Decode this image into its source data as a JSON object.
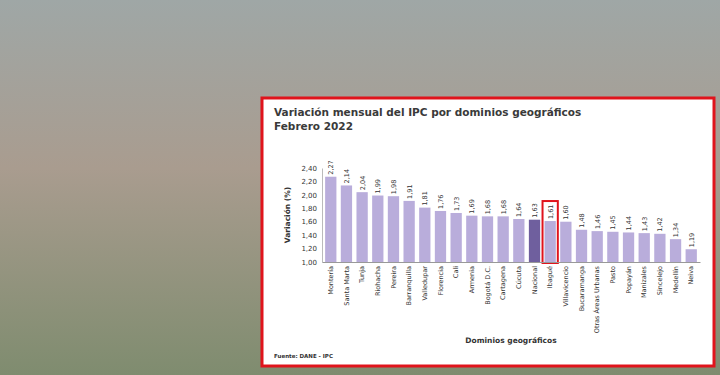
{
  "chart_data": {
    "type": "bar",
    "title": "Variación mensual del IPC por dominios geográficos",
    "subtitle": "Febrero 2022",
    "x_label": "Dominios geográficos",
    "y_label": "Variación (%)",
    "source": "Fuente: DANE - IPC",
    "categories": [
      "Montería",
      "Santa Marta",
      "Tunja",
      "Riohacha",
      "Pereira",
      "Barranquilla",
      "Valledupar",
      "Florencia",
      "Cali",
      "Armenia",
      "Bogotá D.C.",
      "Cartagena",
      "Cúcuta",
      "Nacional",
      "Ibagué",
      "Villavicencio",
      "Bucaramanga",
      "Otras Áreas Urbanas",
      "Pasto",
      "Popayán",
      "Manizales",
      "Sincelejo",
      "Medellín",
      "Neiva"
    ],
    "values": [
      2.27,
      2.14,
      2.04,
      1.99,
      1.98,
      1.91,
      1.81,
      1.76,
      1.73,
      1.69,
      1.68,
      1.68,
      1.64,
      1.63,
      1.61,
      1.6,
      1.48,
      1.46,
      1.45,
      1.44,
      1.43,
      1.42,
      1.34,
      1.19
    ],
    "value_labels": [
      "2,27",
      "2,14",
      "2,04",
      "1,99",
      "1,98",
      "1,91",
      "1,81",
      "1,76",
      "1,73",
      "1,69",
      "1,68",
      "1,68",
      "1,64",
      "1,63",
      "1,61",
      "1,60",
      "1,48",
      "1,46",
      "1,45",
      "1,44",
      "1,43",
      "1,42",
      "1,34",
      "1,19"
    ],
    "colors": [
      "#b9addb",
      "#b9addb",
      "#b9addb",
      "#b9addb",
      "#b9addb",
      "#b9addb",
      "#b9addb",
      "#b9addb",
      "#b9addb",
      "#b9addb",
      "#b9addb",
      "#b9addb",
      "#b9addb",
      "#6f5f9e",
      "#b9addb",
      "#b9addb",
      "#b9addb",
      "#b9addb",
      "#b9addb",
      "#b9addb",
      "#b9addb",
      "#b9addb",
      "#b9addb",
      "#b9addb"
    ],
    "ylim": [
      1.0,
      2.4
    ],
    "yticks": [
      {
        "value": 1.0,
        "label": "1,00"
      },
      {
        "value": 1.2,
        "label": "1,20"
      },
      {
        "value": 1.4,
        "label": "1,40"
      },
      {
        "value": 1.6,
        "label": "1,60"
      },
      {
        "value": 1.8,
        "label": "1,80"
      },
      {
        "value": 2.0,
        "label": "2,00"
      },
      {
        "value": 2.2,
        "label": "2,20"
      },
      {
        "value": 2.4,
        "label": "2,40"
      }
    ],
    "grid": false,
    "data_labels": true
  }
}
